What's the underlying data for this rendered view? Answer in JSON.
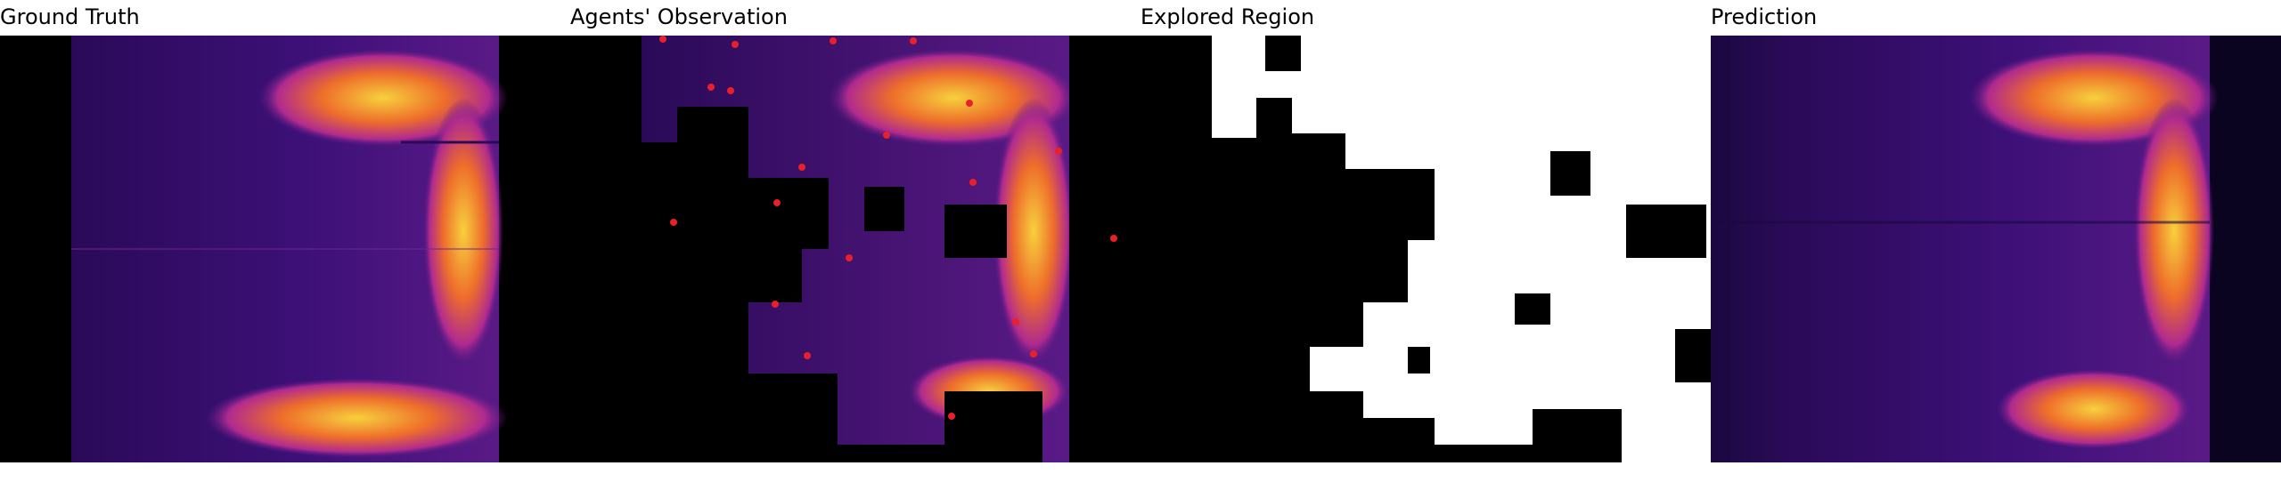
{
  "figure": {
    "panels": [
      {
        "title": "Ground Truth"
      },
      {
        "title": "Agents' Observation"
      },
      {
        "title": "Explored Region"
      },
      {
        "title": "Prediction"
      }
    ]
  },
  "colors": {
    "background": "#000000",
    "heat_low": "#3a0f72",
    "heat_mid": "#b02a8f",
    "heat_high": "#f7d13d",
    "agent_marker": "#e8202a",
    "explored": "#ffffff"
  }
}
